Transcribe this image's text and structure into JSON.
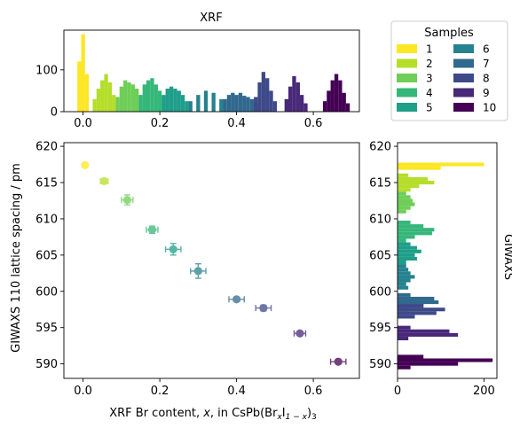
{
  "figure": {
    "xrf_title": "XRF",
    "main_xlabel_parts": [
      "XRF Br content, ",
      "x",
      ", in CsPb(Br",
      "x",
      "I",
      "1 − x",
      ")",
      "3"
    ],
    "main_ylabel": "GIWAXS 110 lattice spacing / pm",
    "right_side_label": "GIWAXS"
  },
  "chart_data": [
    {
      "id": "xrf_histogram",
      "type": "bar",
      "title": "XRF",
      "xlabel": "",
      "ylabel": "",
      "xlim": [
        -0.05,
        0.72
      ],
      "ylim": [
        0,
        195
      ],
      "x_ticks": [
        0.0,
        0.2,
        0.4,
        0.6
      ],
      "x_tick_labels": [
        "0.0",
        "0.2",
        "0.4",
        "0.6"
      ],
      "y_ticks": [
        0,
        100
      ],
      "y_tick_labels": [
        "0",
        "100"
      ],
      "bin_width": 0.01,
      "series": [
        {
          "name": "1",
          "x": [
            -0.01,
            0.0,
            0.01
          ],
          "values": [
            120,
            185,
            90
          ]
        },
        {
          "name": "2",
          "x": [
            0.03,
            0.04,
            0.05,
            0.06,
            0.07,
            0.08,
            0.09
          ],
          "values": [
            30,
            55,
            75,
            90,
            70,
            40,
            20
          ]
        },
        {
          "name": "3",
          "x": [
            0.09,
            0.1,
            0.11,
            0.12,
            0.13,
            0.14,
            0.15
          ],
          "values": [
            35,
            60,
            75,
            70,
            65,
            55,
            30
          ]
        },
        {
          "name": "4",
          "x": [
            0.15,
            0.16,
            0.17,
            0.18,
            0.19,
            0.2,
            0.21
          ],
          "values": [
            40,
            65,
            75,
            80,
            65,
            50,
            30
          ]
        },
        {
          "name": "5",
          "x": [
            0.21,
            0.22,
            0.23,
            0.24,
            0.25,
            0.26,
            0.27
          ],
          "values": [
            40,
            55,
            60,
            55,
            50,
            40,
            25
          ]
        },
        {
          "name": "6",
          "x": [
            0.28,
            0.3,
            0.32,
            0.34,
            0.36
          ],
          "values": [
            25,
            40,
            50,
            45,
            30
          ]
        },
        {
          "name": "7",
          "x": [
            0.37,
            0.38,
            0.39,
            0.4,
            0.41,
            0.42,
            0.43,
            0.44,
            0.45
          ],
          "values": [
            30,
            40,
            45,
            40,
            45,
            38,
            35,
            30,
            20
          ]
        },
        {
          "name": "8",
          "x": [
            0.45,
            0.46,
            0.47,
            0.48,
            0.49,
            0.5
          ],
          "values": [
            35,
            70,
            95,
            80,
            50,
            25
          ]
        },
        {
          "name": "9",
          "x": [
            0.53,
            0.54,
            0.55,
            0.56,
            0.57,
            0.58
          ],
          "values": [
            30,
            60,
            85,
            70,
            40,
            20
          ]
        },
        {
          "name": "10",
          "x": [
            0.63,
            0.64,
            0.65,
            0.66,
            0.67,
            0.68,
            0.69
          ],
          "values": [
            25,
            50,
            75,
            90,
            75,
            45,
            20
          ]
        }
      ]
    },
    {
      "id": "lattice_vs_br",
      "type": "scatter",
      "title": "",
      "xlabel": "XRF Br content, x, in CsPb(BrxI1−x)3",
      "ylabel": "GIWAXS 110 lattice spacing / pm",
      "xlim": [
        -0.05,
        0.72
      ],
      "ylim": [
        588,
        620.5
      ],
      "x_ticks": [
        0.0,
        0.2,
        0.4,
        0.6
      ],
      "x_tick_labels": [
        "0.0",
        "0.2",
        "0.4",
        "0.6"
      ],
      "y_ticks": [
        590,
        595,
        600,
        605,
        610,
        615,
        620
      ],
      "y_tick_labels": [
        "590",
        "595",
        "600",
        "605",
        "610",
        "615",
        "620"
      ],
      "series": [
        {
          "name": "1",
          "x": 0.005,
          "y": 617.4,
          "xerr": 0.0,
          "yerr": 0.2
        },
        {
          "name": "2",
          "x": 0.055,
          "y": 615.2,
          "xerr": 0.01,
          "yerr": 0.3
        },
        {
          "name": "3",
          "x": 0.115,
          "y": 612.6,
          "xerr": 0.015,
          "yerr": 0.7
        },
        {
          "name": "4",
          "x": 0.18,
          "y": 608.5,
          "xerr": 0.015,
          "yerr": 0.5
        },
        {
          "name": "5",
          "x": 0.235,
          "y": 605.8,
          "xerr": 0.02,
          "yerr": 0.8
        },
        {
          "name": "6",
          "x": 0.3,
          "y": 602.8,
          "xerr": 0.02,
          "yerr": 1.0
        },
        {
          "name": "7",
          "x": 0.4,
          "y": 598.9,
          "xerr": 0.02,
          "yerr": 0.3
        },
        {
          "name": "8",
          "x": 0.47,
          "y": 597.7,
          "xerr": 0.02,
          "yerr": 0.4
        },
        {
          "name": "9",
          "x": 0.565,
          "y": 594.2,
          "xerr": 0.015,
          "yerr": 0.3
        },
        {
          "name": "10",
          "x": 0.665,
          "y": 590.3,
          "xerr": 0.02,
          "yerr": 0.3
        }
      ]
    },
    {
      "id": "giwaxs_histogram",
      "type": "bar",
      "orientation": "horizontal",
      "title": "",
      "xlabel": "",
      "ylabel": "GIWAXS",
      "xlim": [
        0,
        230
      ],
      "ylim": [
        588,
        620.5
      ],
      "x_ticks": [
        0,
        200
      ],
      "x_tick_labels": [
        "0",
        "200"
      ],
      "y_ticks": [
        590,
        595,
        600,
        605,
        610,
        615,
        620
      ],
      "y_tick_labels": [
        "590",
        "595",
        "600",
        "605",
        "610",
        "615",
        "620"
      ],
      "bin_height": 0.5,
      "series": [
        {
          "name": "1",
          "y": [
            617.0,
            617.5
          ],
          "values": [
            100,
            200
          ]
        },
        {
          "name": "2",
          "y": [
            614.0,
            614.5,
            615.0,
            615.5,
            616.0
          ],
          "values": [
            30,
            50,
            85,
            70,
            25
          ]
        },
        {
          "name": "3",
          "y": [
            611.0,
            611.5,
            612.0,
            612.5,
            613.0,
            613.5
          ],
          "values": [
            20,
            30,
            40,
            35,
            30,
            20
          ]
        },
        {
          "name": "4",
          "y": [
            607.0,
            607.5,
            608.0,
            608.5,
            609.0,
            609.5
          ],
          "values": [
            20,
            40,
            80,
            85,
            60,
            30
          ]
        },
        {
          "name": "5",
          "y": [
            604.0,
            604.5,
            605.0,
            605.5,
            606.0,
            606.5
          ],
          "values": [
            20,
            45,
            40,
            55,
            45,
            30
          ]
        },
        {
          "name": "6",
          "y": [
            600.5,
            601.0,
            601.5,
            602.0,
            602.5,
            603.0,
            603.5
          ],
          "values": [
            25,
            20,
            30,
            40,
            30,
            25,
            20
          ]
        },
        {
          "name": "7",
          "y": [
            597.5,
            598.0,
            598.5,
            599.0,
            599.5
          ],
          "values": [
            25,
            60,
            95,
            85,
            30
          ]
        },
        {
          "name": "8",
          "y": [
            596.5,
            597.0,
            597.5,
            598.0
          ],
          "values": [
            40,
            90,
            110,
            60
          ]
        },
        {
          "name": "9",
          "y": [
            593.5,
            594.0,
            594.5,
            595.0
          ],
          "values": [
            25,
            140,
            120,
            30
          ]
        },
        {
          "name": "10",
          "y": [
            589.5,
            590.0,
            590.5,
            591.0
          ],
          "values": [
            30,
            140,
            220,
            60
          ]
        }
      ]
    }
  ],
  "legend": {
    "title": "Samples",
    "placement": "top-right",
    "items": [
      {
        "label": "1",
        "color": "#fde725"
      },
      {
        "label": "2",
        "color": "#b5de2b"
      },
      {
        "label": "3",
        "color": "#6ece58"
      },
      {
        "label": "4",
        "color": "#35b779"
      },
      {
        "label": "5",
        "color": "#1f9e89"
      },
      {
        "label": "6",
        "color": "#26828e"
      },
      {
        "label": "7",
        "color": "#31688e"
      },
      {
        "label": "8",
        "color": "#3e4989"
      },
      {
        "label": "9",
        "color": "#482878"
      },
      {
        "label": "10",
        "color": "#440154"
      }
    ]
  }
}
